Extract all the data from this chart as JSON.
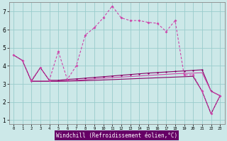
{
  "title": "",
  "xlabel": "Windchill (Refroidissement éolien,°C)",
  "bg_color": "#cce8e8",
  "grid_color": "#99cccc",
  "line_color_main": "#cc44aa",
  "line_color_dark": "#880066",
  "xlim": [
    -0.5,
    23.5
  ],
  "ylim": [
    0.8,
    7.5
  ],
  "xticks": [
    0,
    1,
    2,
    3,
    4,
    5,
    6,
    7,
    8,
    9,
    10,
    11,
    12,
    13,
    14,
    15,
    16,
    17,
    18,
    19,
    20,
    21,
    22,
    23
  ],
  "yticks": [
    1,
    2,
    3,
    4,
    5,
    6,
    7
  ],
  "line1_x": [
    0,
    1,
    2,
    3,
    4,
    5,
    6,
    7,
    8,
    9,
    10,
    11,
    12,
    13,
    14,
    15,
    16,
    17,
    18,
    19,
    20,
    21,
    22,
    23
  ],
  "line1_y": [
    4.6,
    4.3,
    3.2,
    3.9,
    3.2,
    4.8,
    3.25,
    4.0,
    5.7,
    6.1,
    6.65,
    7.3,
    6.65,
    6.5,
    6.5,
    6.4,
    6.35,
    5.9,
    6.5,
    3.5,
    3.5,
    2.6,
    1.35,
    2.35
  ],
  "line2_x": [
    2,
    3,
    4,
    5,
    6,
    7,
    8,
    9,
    10,
    11,
    12,
    13,
    14,
    15,
    16,
    17,
    18,
    19,
    20,
    21,
    22,
    23
  ],
  "line2_y": [
    3.15,
    3.9,
    3.2,
    3.2,
    3.25,
    3.28,
    3.32,
    3.36,
    3.4,
    3.44,
    3.48,
    3.52,
    3.56,
    3.6,
    3.63,
    3.66,
    3.69,
    3.72,
    3.75,
    3.78,
    2.6,
    2.35
  ],
  "line3_x": [
    2,
    3,
    4,
    5,
    6,
    7,
    8,
    9,
    10,
    11,
    12,
    13,
    14,
    15,
    16,
    17,
    18,
    19,
    20,
    21,
    22,
    23
  ],
  "line3_y": [
    3.15,
    3.15,
    3.15,
    3.15,
    3.17,
    3.2,
    3.24,
    3.28,
    3.32,
    3.35,
    3.38,
    3.41,
    3.44,
    3.47,
    3.5,
    3.53,
    3.56,
    3.58,
    3.6,
    3.62,
    2.6,
    2.35
  ],
  "line4_x": [
    0,
    1,
    2,
    3,
    4,
    5,
    6,
    7,
    8,
    9,
    10,
    11,
    12,
    13,
    14,
    15,
    16,
    17,
    18,
    19,
    20,
    21,
    22,
    23
  ],
  "line4_y": [
    4.6,
    4.3,
    3.15,
    3.15,
    3.15,
    3.15,
    3.16,
    3.17,
    3.18,
    3.2,
    3.22,
    3.24,
    3.26,
    3.28,
    3.3,
    3.32,
    3.34,
    3.36,
    3.38,
    3.4,
    3.42,
    2.6,
    1.35,
    2.35
  ],
  "xlabel_bg": "#660066",
  "xlabel_fg": "#ffffff"
}
